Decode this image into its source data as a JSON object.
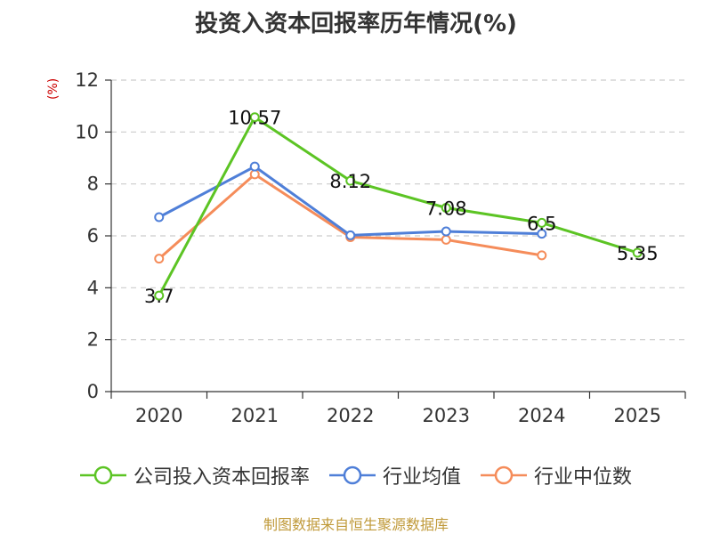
{
  "title": "投资入资本回报率历年情况(%)",
  "unit_label": "(%)",
  "source": "制图数据来自恒生聚源数据库",
  "colors": {
    "company": "#5cc424",
    "industry_avg": "#4f7fd8",
    "industry_median": "#f58c5a",
    "grid": "#cccccc",
    "axis": "#333333",
    "unit": "#cc0000",
    "source": "#c09a3a"
  },
  "chart_data": {
    "type": "line",
    "title": "投资入资本回报率历年情况(%)",
    "ylabel": "(%)",
    "categories": [
      "2020",
      "2021",
      "2022",
      "2023",
      "2024",
      "2025"
    ],
    "ylim": [
      0,
      12
    ],
    "yticks": [
      0,
      2,
      4,
      6,
      8,
      10,
      12
    ],
    "grid": true,
    "legend_position": "bottom",
    "series": [
      {
        "name": "公司投入资本回报率",
        "color": "#5cc424",
        "values": [
          3.7,
          10.57,
          8.12,
          7.08,
          6.5,
          5.35
        ],
        "labels": [
          "3.7",
          "10.57",
          "8.12",
          "7.08",
          "6.5",
          "5.35"
        ]
      },
      {
        "name": "行业均值",
        "color": "#4f7fd8",
        "values": [
          6.72,
          8.67,
          6.02,
          6.17,
          6.08,
          null
        ]
      },
      {
        "name": "行业中位数",
        "color": "#f58c5a",
        "values": [
          5.12,
          8.37,
          5.95,
          5.85,
          5.25,
          null
        ]
      }
    ]
  }
}
